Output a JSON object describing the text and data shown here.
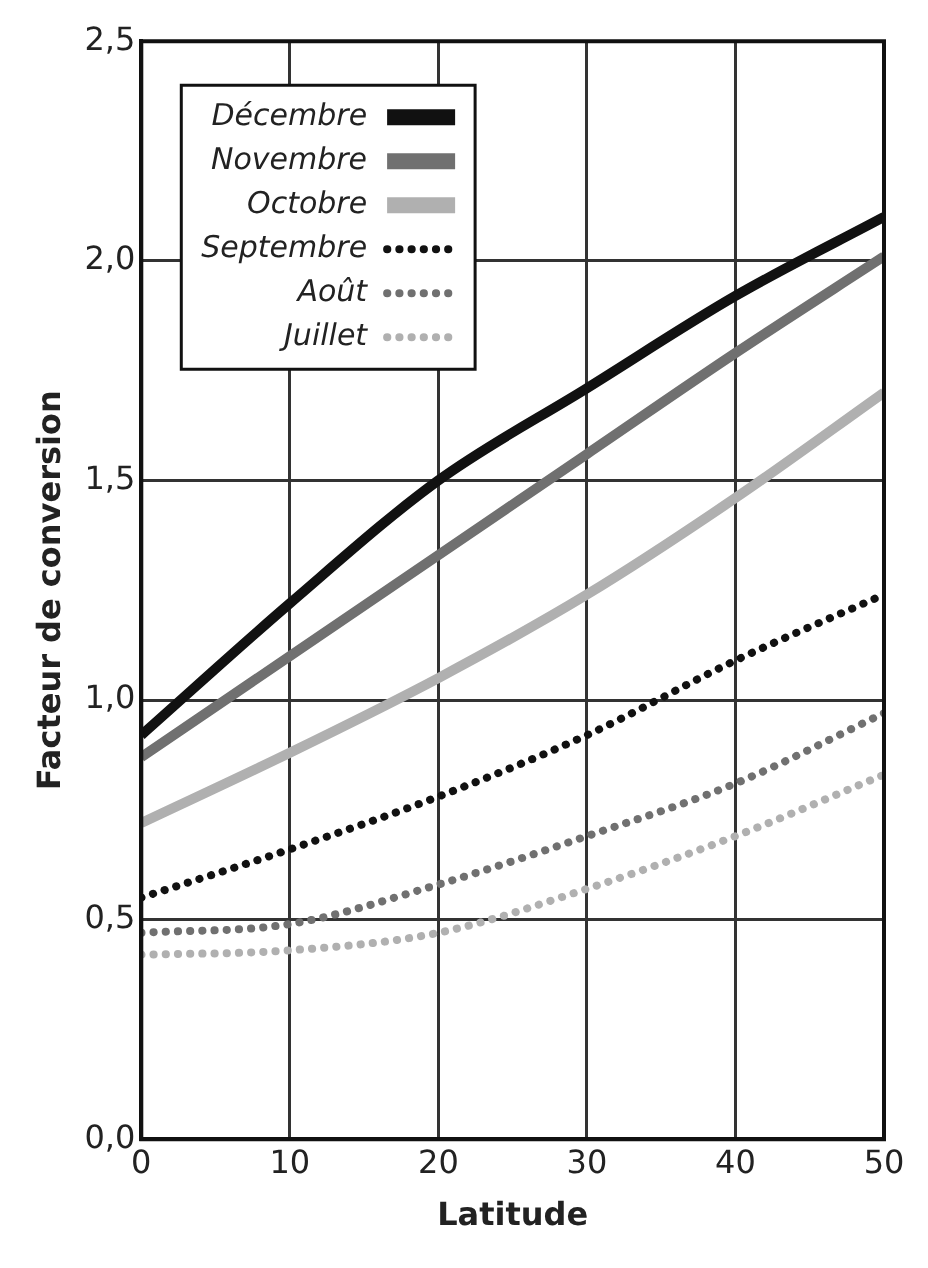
{
  "chart_data": {
    "type": "line",
    "xlabel": "Latitude",
    "ylabel": "Facteur de conversion",
    "x": [
      0,
      10,
      20,
      30,
      40,
      50
    ],
    "xlim": [
      0,
      50
    ],
    "xticks": [
      0,
      10,
      20,
      30,
      40,
      50
    ],
    "ylim": [
      0,
      2.5
    ],
    "yticks": [
      {
        "value": 0,
        "label": "0,0"
      },
      {
        "value": 0.5,
        "label": "0,5"
      },
      {
        "value": 1,
        "label": "1,0"
      },
      {
        "value": 1.5,
        "label": "1,5"
      },
      {
        "value": 2,
        "label": "2,0"
      },
      {
        "value": 2.5,
        "label": "2,5"
      }
    ],
    "grid": true,
    "legend": "top left",
    "marker": "none",
    "series": [
      {
        "name": "Décembre",
        "color": "#111111",
        "line_style": "solid",
        "values": [
          0.92,
          1.22,
          1.5,
          1.71,
          1.92,
          2.1
        ]
      },
      {
        "name": "Novembre",
        "color": "#707070",
        "line_style": "solid",
        "values": [
          0.87,
          1.1,
          1.33,
          1.56,
          1.79,
          2.01
        ]
      },
      {
        "name": "Octobre",
        "color": "#b0b0b0",
        "line_style": "solid",
        "values": [
          0.72,
          0.88,
          1.05,
          1.24,
          1.46,
          1.7
        ]
      },
      {
        "name": "Septembre",
        "color": "#111111",
        "line_style": "dotted",
        "values": [
          0.55,
          0.66,
          0.78,
          0.92,
          1.09,
          1.24
        ]
      },
      {
        "name": "Août",
        "color": "#707070",
        "line_style": "dotted",
        "values": [
          0.47,
          0.49,
          0.58,
          0.69,
          0.81,
          0.97
        ]
      },
      {
        "name": "Juillet",
        "color": "#b0b0b0",
        "line_style": "dotted",
        "values": [
          0.42,
          0.43,
          0.47,
          0.57,
          0.69,
          0.83
        ]
      }
    ]
  }
}
